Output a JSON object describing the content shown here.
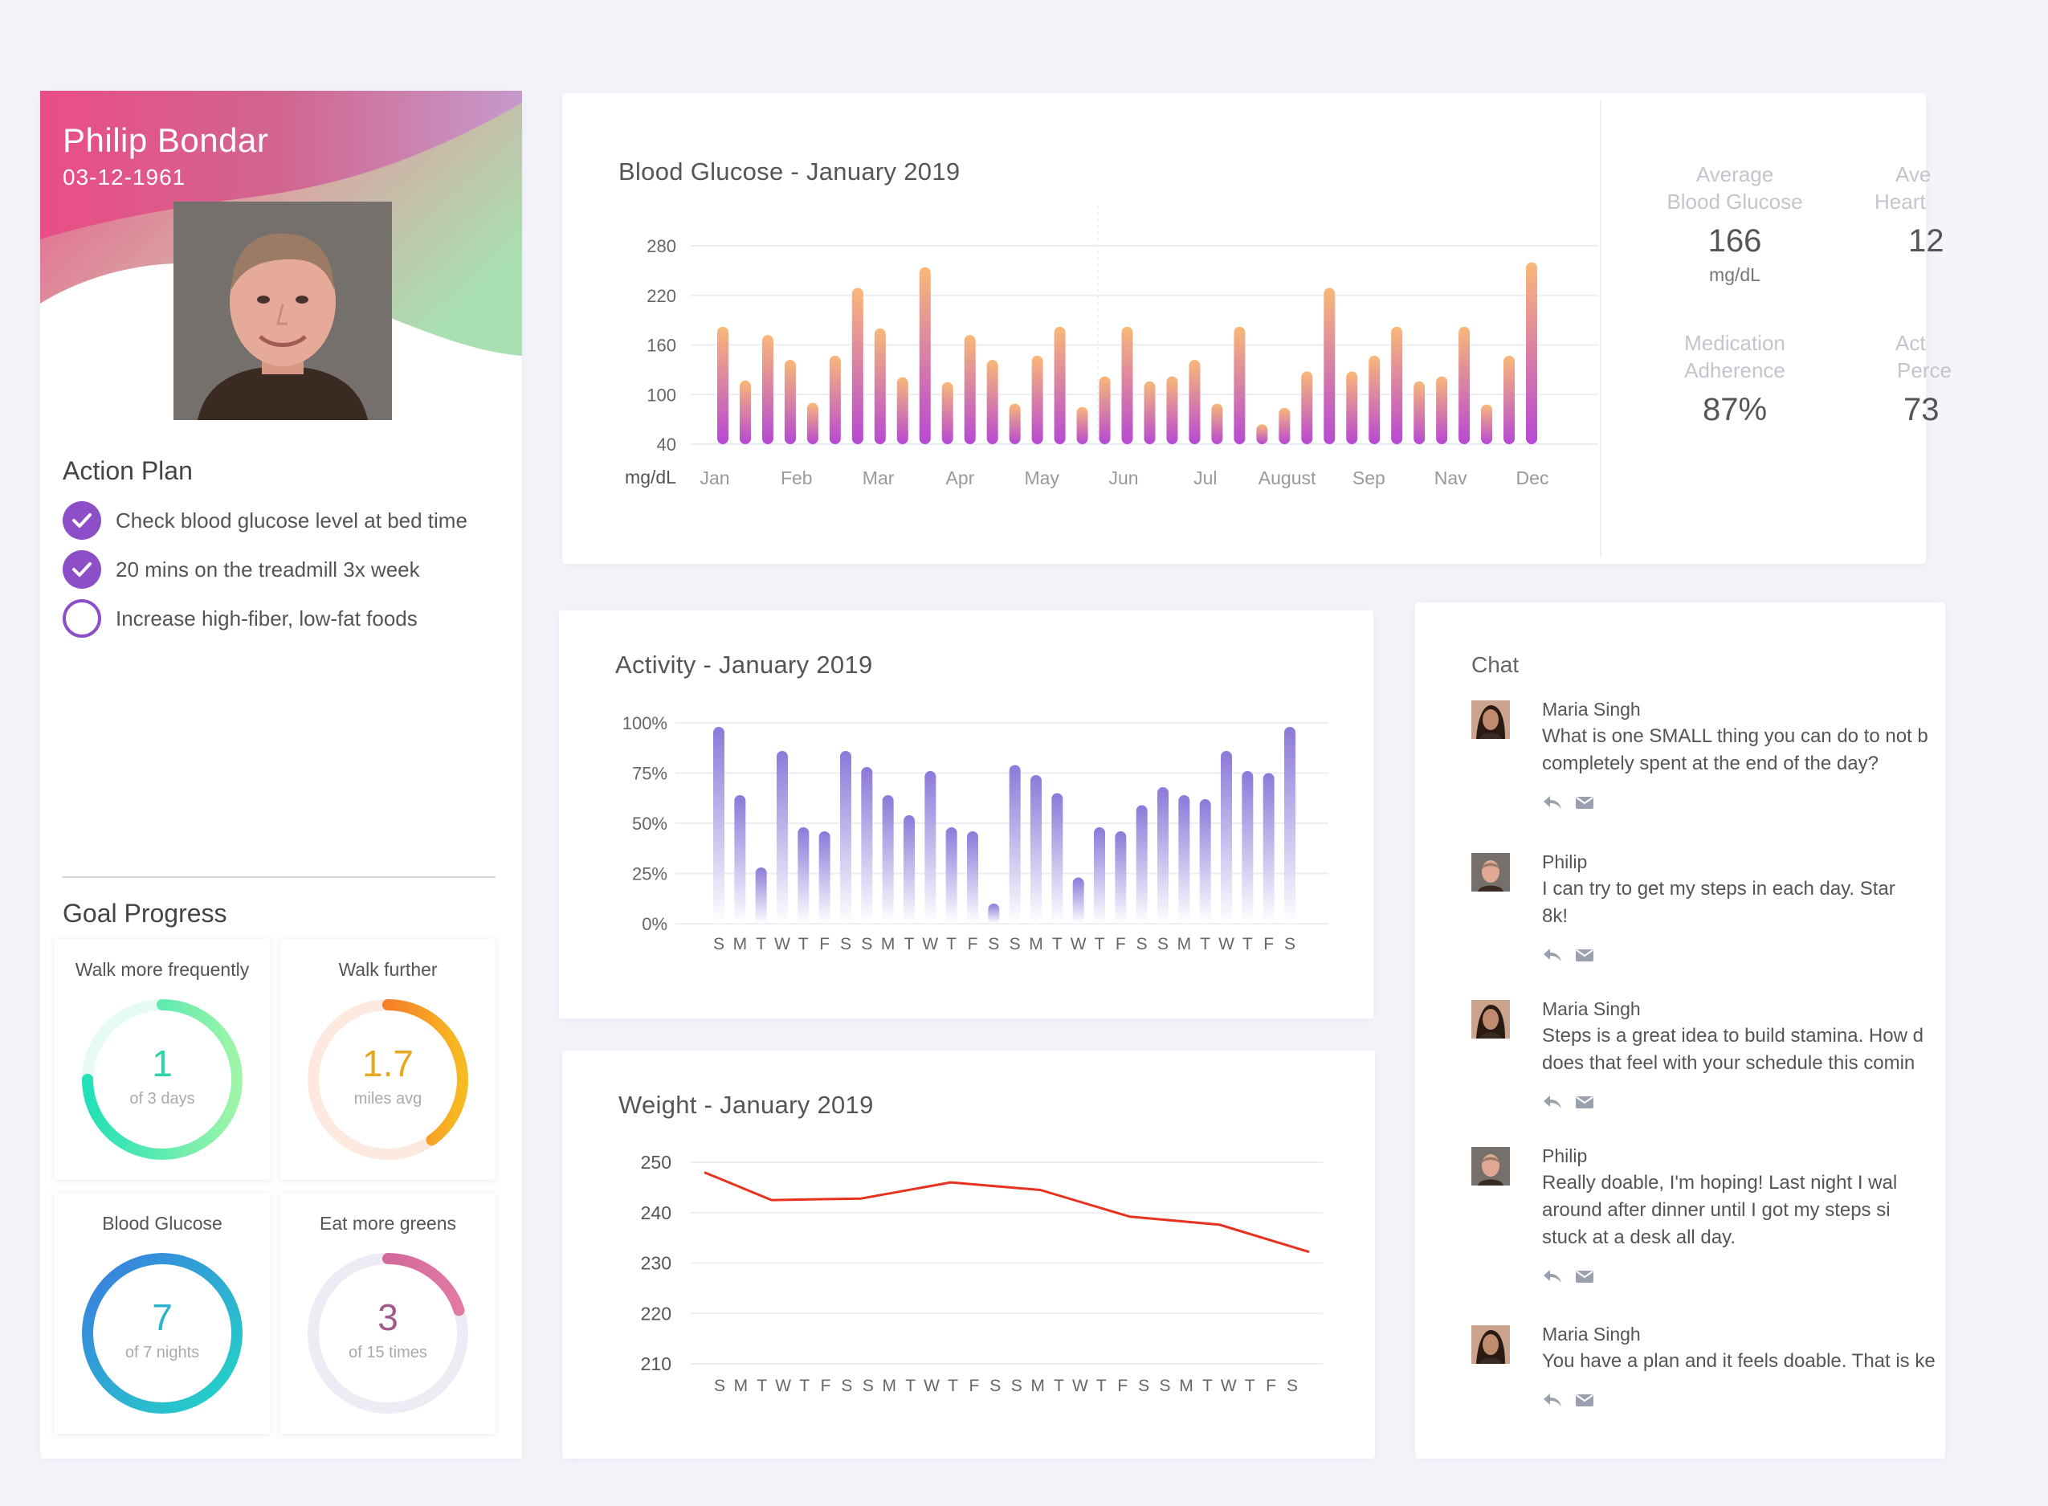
{
  "profile": {
    "name": "Philip Bondar",
    "dob": "03-12-1961",
    "action_plan_title": "Action Plan",
    "action_items": [
      {
        "label": "Check blood glucose level at bed time",
        "done": true
      },
      {
        "label": "20 mins on the treadmill 3x week",
        "done": true
      },
      {
        "label": "Increase high-fiber, low-fat foods",
        "done": false
      }
    ],
    "goal_title": "Goal Progress",
    "goals": [
      {
        "title": "Walk more frequently",
        "value": "1",
        "sub": "of 3 days",
        "color": "#2ed3a8",
        "progress": 0.75
      },
      {
        "title": "Walk further",
        "value": "1.7",
        "sub": "miles avg",
        "color": "#e6a81e",
        "progress": 0.4
      },
      {
        "title": "Blood Glucose",
        "value": "7",
        "sub": "of 7 nights",
        "color": "#2bb3c9",
        "progress": 1.0
      },
      {
        "title": "Eat more greens",
        "value": "3",
        "sub": "of 15 times",
        "color": "#a05a8c",
        "progress": 0.2
      }
    ]
  },
  "glucose": {
    "title": "Blood Glucose - January 2019",
    "stats": [
      {
        "label1": "Average",
        "label2": "Blood Glucose",
        "value": "166",
        "unit": "mg/dL"
      },
      {
        "label1": "Ave",
        "label2": "Heart",
        "value": "12",
        "unit": ""
      },
      {
        "label1": "Medication",
        "label2": "Adherence",
        "value": "87%",
        "unit": ""
      },
      {
        "label1": "Act",
        "label2": "Perce",
        "value": "73",
        "unit": ""
      }
    ]
  },
  "activity": {
    "title": "Activity - January 2019"
  },
  "weight": {
    "title": "Weight - January 2019"
  },
  "chat": {
    "title": "Chat",
    "messages": [
      {
        "name": "Maria Singh",
        "who": "maria",
        "lines": [
          "What is one SMALL thing you can do to not b",
          "completely spent at the end of the day?"
        ]
      },
      {
        "name": "Philip",
        "who": "philip",
        "lines": [
          "I can try to get my steps in each day. Star",
          "8k!"
        ]
      },
      {
        "name": "Maria Singh",
        "who": "maria",
        "lines": [
          "Steps is a great idea to build stamina. How d",
          "does that feel with your schedule this comin"
        ]
      },
      {
        "name": "Philip",
        "who": "philip",
        "lines": [
          "Really doable, I'm hoping! Last night I wal",
          "around after dinner until I got my steps si",
          "stuck at a desk all day."
        ]
      },
      {
        "name": "Maria Singh",
        "who": "maria",
        "lines": [
          "You have a plan and it feels doable. That is ke"
        ]
      }
    ]
  },
  "chart_data": [
    {
      "type": "bar",
      "title": "Blood Glucose - January 2019",
      "ylabel": "mg/dL",
      "ylim": [
        40,
        280
      ],
      "yticks": [
        280,
        220,
        160,
        100,
        40
      ],
      "month_labels": [
        "Jan",
        "Feb",
        "Mar",
        "Apr",
        "May",
        "Jun",
        "Jul",
        "August",
        "Sep",
        "Nav",
        "Dec"
      ],
      "values": [
        182,
        117,
        172,
        142,
        90,
        147,
        229,
        180,
        121,
        254,
        115,
        172,
        142,
        89,
        147,
        182,
        85,
        122,
        182,
        116,
        122,
        142,
        89,
        182,
        64,
        84,
        128,
        229,
        128,
        147,
        182,
        116,
        122,
        182,
        88,
        147,
        260
      ],
      "colors": {
        "top": "#f9b877",
        "bottom": "#b748d4"
      }
    },
    {
      "type": "bar",
      "title": "Activity - January 2019",
      "ylim": [
        0,
        100
      ],
      "yticks": [
        "100%",
        "75%",
        "50%",
        "25%",
        "0%"
      ],
      "categories": [
        "S",
        "M",
        "T",
        "W",
        "T",
        "F",
        "S",
        "S",
        "M",
        "T",
        "W",
        "T",
        "F",
        "S",
        "S",
        "M",
        "T",
        "W",
        "T",
        "F",
        "S",
        "S",
        "M",
        "T",
        "W",
        "T",
        "F",
        "S"
      ],
      "values": [
        98,
        64,
        28,
        86,
        48,
        46,
        86,
        78,
        64,
        54,
        76,
        48,
        46,
        10,
        79,
        74,
        65,
        23,
        48,
        46,
        59,
        68,
        64,
        62,
        86,
        76,
        75,
        98
      ],
      "color": "#8c79d9"
    },
    {
      "type": "line",
      "title": "Weight - January 2019",
      "ylim": [
        210,
        250
      ],
      "yticks": [
        250,
        240,
        230,
        220,
        210
      ],
      "categories": [
        "S",
        "M",
        "T",
        "W",
        "T",
        "F",
        "S",
        "S",
        "M",
        "T",
        "W",
        "T",
        "F",
        "S",
        "S",
        "M",
        "T",
        "W",
        "T",
        "F",
        "S",
        "S",
        "M",
        "T",
        "W",
        "T",
        "F",
        "S"
      ],
      "points": [
        [
          0,
          248
        ],
        [
          3,
          242.5
        ],
        [
          7,
          242.8
        ],
        [
          11,
          246
        ],
        [
          15,
          244.5
        ],
        [
          19,
          239.2
        ],
        [
          23,
          237.6
        ],
        [
          27,
          232.2
        ]
      ],
      "color": "#e6321e"
    }
  ]
}
